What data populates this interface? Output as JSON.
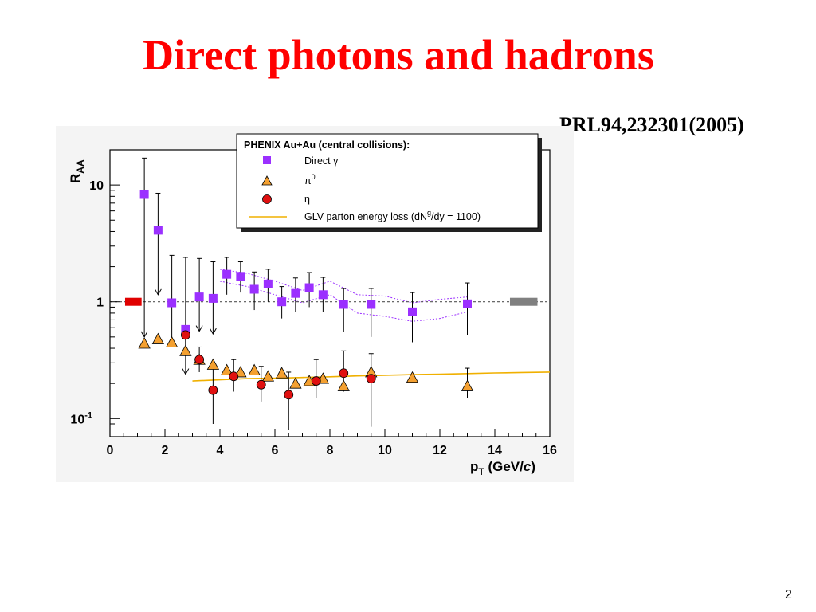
{
  "slide": {
    "title": "Direct photons and hadrons",
    "reference": "PRL94,232301(2005)",
    "page_number": "2"
  },
  "colors": {
    "title": "#ff0000",
    "direct_gamma": "#9b30ff",
    "pi0": "#f4a030",
    "eta": "#e01010",
    "glv": "#f0b000",
    "unity_box_left": "#e00000",
    "unity_box_right": "#808080"
  },
  "chart_data": {
    "type": "scatter",
    "xlabel_main": "p",
    "xlabel_sub": "T",
    "xlabel_unit": " (GeV/",
    "xlabel_unit_italic": "c",
    "xlabel_close": ")",
    "ylabel_main": "R",
    "ylabel_sub": "AA",
    "xlim": [
      0,
      16
    ],
    "ylim": [
      0.07,
      20
    ],
    "yscale": "log",
    "x_ticks": [
      "0",
      "2",
      "4",
      "6",
      "8",
      "10",
      "12",
      "14",
      "16"
    ],
    "y_ticks": [
      {
        "value": 10,
        "label": "10",
        "exp": ""
      },
      {
        "value": 1,
        "label": "1",
        "exp": ""
      },
      {
        "value": 0.1,
        "label": "10",
        "exp": "-1"
      }
    ],
    "legend": {
      "position": "top-right",
      "title": "PHENIX Au+Au (central collisions):",
      "entries": [
        {
          "label": "Direct γ",
          "label_sup": ""
        },
        {
          "label": "π",
          "label_sup": "0"
        },
        {
          "label": "η",
          "label_sup": ""
        },
        {
          "label": "GLV parton energy loss (dN",
          "label_sup": "g",
          "label_tail": "/dy = 1100)"
        }
      ]
    },
    "series": [
      {
        "name": "Direct γ",
        "marker": "square",
        "points": [
          {
            "x": 1.25,
            "y": 8.3,
            "hi": 17.0,
            "upper_limit": true,
            "arrow_to": 0.5
          },
          {
            "x": 1.75,
            "y": 4.1,
            "hi": 8.5,
            "upper_limit": true,
            "arrow_to": 1.15
          },
          {
            "x": 2.25,
            "y": 0.98,
            "hi": 2.5,
            "lo": 0.5
          },
          {
            "x": 2.75,
            "y": 0.58,
            "hi": 2.4,
            "upper_limit": true,
            "arrow_to": 0.24
          },
          {
            "x": 3.25,
            "y": 1.1,
            "hi": 2.35,
            "upper_limit": true,
            "arrow_to": 0.56
          },
          {
            "x": 3.75,
            "y": 1.07,
            "hi": 2.2,
            "upper_limit": true,
            "arrow_to": 0.53
          },
          {
            "x": 4.25,
            "y": 1.72,
            "hi": 2.4,
            "lo": 1.15
          },
          {
            "x": 4.75,
            "y": 1.65,
            "hi": 2.2,
            "lo": 1.2
          },
          {
            "x": 5.25,
            "y": 1.28,
            "hi": 1.8,
            "lo": 0.85
          },
          {
            "x": 5.75,
            "y": 1.42,
            "hi": 1.9,
            "lo": 1.0
          },
          {
            "x": 6.25,
            "y": 1.0,
            "hi": 1.35,
            "lo": 0.72
          },
          {
            "x": 6.75,
            "y": 1.18,
            "hi": 1.6,
            "lo": 0.82
          },
          {
            "x": 7.25,
            "y": 1.32,
            "hi": 1.78,
            "lo": 0.9
          },
          {
            "x": 7.75,
            "y": 1.15,
            "hi": 1.62,
            "lo": 0.82
          },
          {
            "x": 8.5,
            "y": 0.95,
            "hi": 1.3,
            "lo": 0.55
          },
          {
            "x": 9.5,
            "y": 0.95,
            "hi": 1.3,
            "lo": 0.5
          },
          {
            "x": 11.0,
            "y": 0.82,
            "hi": 1.2,
            "lo": 0.45
          },
          {
            "x": 13.0,
            "y": 0.96,
            "hi": 1.45,
            "lo": 0.52
          }
        ],
        "syst_band_x": [
          4.0,
          5.0,
          6.0,
          7.0,
          8.0,
          9.0,
          10.0,
          11.0,
          12.0,
          13.0
        ],
        "syst_band_upper": [
          1.9,
          1.75,
          1.5,
          1.25,
          1.5,
          1.15,
          1.12,
          0.98,
          1.05,
          1.1
        ],
        "syst_band_lower": [
          1.5,
          1.35,
          1.15,
          0.98,
          1.15,
          0.8,
          0.75,
          0.68,
          0.72,
          0.82
        ]
      },
      {
        "name": "π⁰",
        "marker": "triangle",
        "points": [
          {
            "x": 1.25,
            "y": 0.44
          },
          {
            "x": 1.75,
            "y": 0.48
          },
          {
            "x": 2.25,
            "y": 0.45
          },
          {
            "x": 2.75,
            "y": 0.38
          },
          {
            "x": 3.25,
            "y": 0.32
          },
          {
            "x": 3.75,
            "y": 0.29
          },
          {
            "x": 4.25,
            "y": 0.26
          },
          {
            "x": 4.75,
            "y": 0.25
          },
          {
            "x": 5.25,
            "y": 0.26
          },
          {
            "x": 5.75,
            "y": 0.23
          },
          {
            "x": 6.25,
            "y": 0.245
          },
          {
            "x": 6.75,
            "y": 0.2
          },
          {
            "x": 7.25,
            "y": 0.21
          },
          {
            "x": 7.75,
            "y": 0.22
          },
          {
            "x": 8.5,
            "y": 0.19
          },
          {
            "x": 9.5,
            "y": 0.25
          },
          {
            "x": 11.0,
            "y": 0.225
          },
          {
            "x": 13.0,
            "y": 0.19,
            "hi": 0.27,
            "lo": 0.15
          }
        ]
      },
      {
        "name": "η",
        "marker": "circle",
        "points": [
          {
            "x": 2.75,
            "y": 0.52,
            "hi": 0.62,
            "lo": 0.42
          },
          {
            "x": 3.25,
            "y": 0.32,
            "hi": 0.41,
            "lo": 0.25
          },
          {
            "x": 3.75,
            "y": 0.175,
            "hi": 0.27,
            "lo": 0.09
          },
          {
            "x": 4.5,
            "y": 0.23,
            "hi": 0.32,
            "lo": 0.17
          },
          {
            "x": 5.5,
            "y": 0.195,
            "hi": 0.28,
            "lo": 0.14
          },
          {
            "x": 6.5,
            "y": 0.16,
            "hi": 0.25,
            "lo": 0.08
          },
          {
            "x": 7.5,
            "y": 0.21,
            "hi": 0.32,
            "lo": 0.15
          },
          {
            "x": 8.5,
            "y": 0.245,
            "hi": 0.38,
            "lo": 0.17
          },
          {
            "x": 9.5,
            "y": 0.22,
            "hi": 0.36,
            "lo": 0.085
          }
        ]
      },
      {
        "name": "GLV parton energy loss",
        "marker": "line",
        "x": [
          3.0,
          4.0,
          5.0,
          6.0,
          7.0,
          8.0,
          9.0,
          10.0,
          11.0,
          12.0,
          13.0,
          14.0,
          15.0,
          16.0
        ],
        "y": [
          0.21,
          0.215,
          0.22,
          0.222,
          0.225,
          0.228,
          0.232,
          0.235,
          0.238,
          0.24,
          0.243,
          0.246,
          0.248,
          0.25
        ]
      }
    ],
    "reference_line_y": 1,
    "unity_boxes": [
      {
        "x0": 0.55,
        "x1": 1.15,
        "y": 1,
        "color_key": "unity_box_left"
      },
      {
        "x0": 14.55,
        "x1": 15.55,
        "y": 1,
        "color_key": "unity_box_right"
      }
    ],
    "grid": false
  }
}
